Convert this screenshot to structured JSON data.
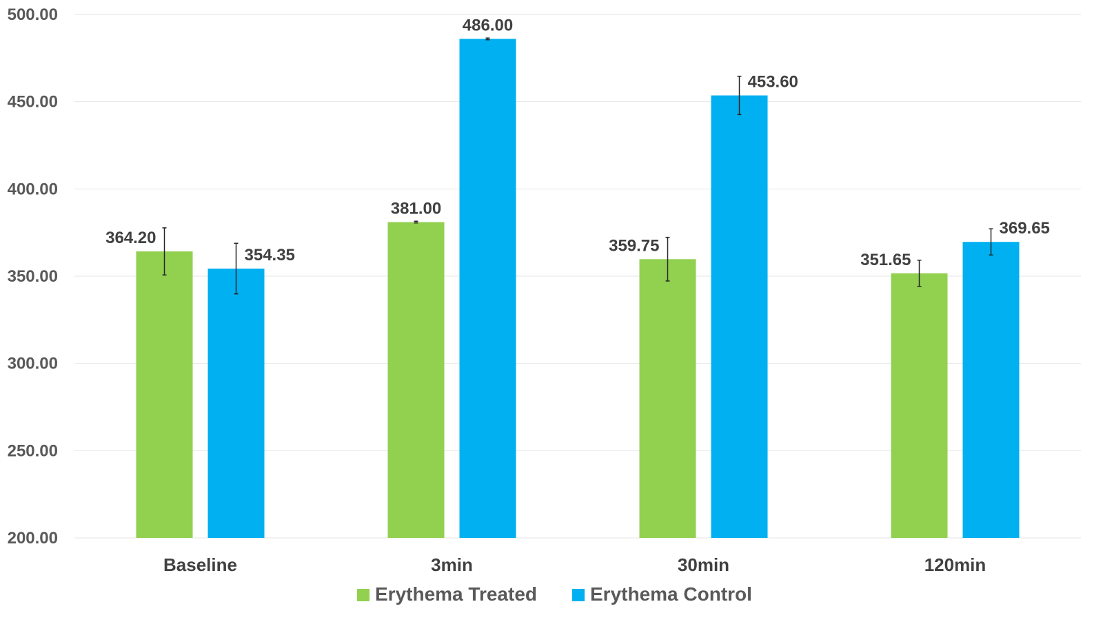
{
  "chart_data": {
    "type": "bar",
    "categories": [
      "Baseline",
      "3min",
      "30min",
      "120min"
    ],
    "series": [
      {
        "name": "Erythema Treated",
        "color": "#92d050",
        "values": [
          364.2,
          381.0,
          359.75,
          351.65
        ],
        "value_labels": [
          "364.20",
          "381.00",
          "359.75",
          "351.65"
        ],
        "error": [
          13.5,
          0.5,
          12.5,
          7.5
        ]
      },
      {
        "name": "Erythema Control",
        "color": "#00b0f0",
        "values": [
          354.35,
          486.0,
          453.6,
          369.65
        ],
        "value_labels": [
          "354.35",
          "486.00",
          "453.60",
          "369.65"
        ],
        "error": [
          14.5,
          0.5,
          11.0,
          7.5
        ]
      }
    ],
    "title": "",
    "xlabel": "",
    "ylabel": "",
    "ylim": [
      200,
      500
    ],
    "yticks": [
      "200.00",
      "250.00",
      "300.00",
      "350.00",
      "400.00",
      "450.00",
      "500.00"
    ],
    "grid": true,
    "legend_position": "bottom"
  }
}
